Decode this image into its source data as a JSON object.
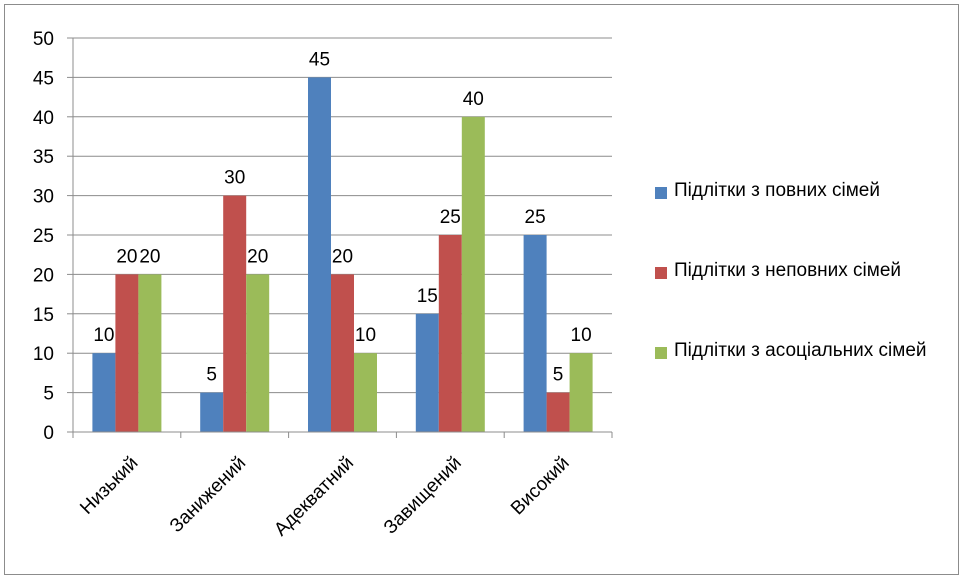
{
  "chart_data": {
    "type": "bar",
    "categories": [
      "Низький",
      "Занижений",
      "Адекватний",
      "Завищений",
      "Високий"
    ],
    "series": [
      {
        "name": "Підлітки з повних сімей",
        "color": "#4f81bd",
        "values": [
          10,
          5,
          45,
          15,
          25
        ]
      },
      {
        "name": "Підлітки з неповних сімей",
        "color": "#c0504d",
        "values": [
          20,
          30,
          20,
          25,
          5
        ]
      },
      {
        "name": "Підлітки з асоціальних сімей",
        "color": "#9bbb59",
        "values": [
          20,
          20,
          10,
          40,
          10
        ]
      }
    ],
    "ylim": [
      0,
      50
    ],
    "yticks": [
      0,
      5,
      10,
      15,
      20,
      25,
      30,
      35,
      40,
      45,
      50
    ],
    "grid": true,
    "legend_position": "right",
    "data_labels": true
  }
}
